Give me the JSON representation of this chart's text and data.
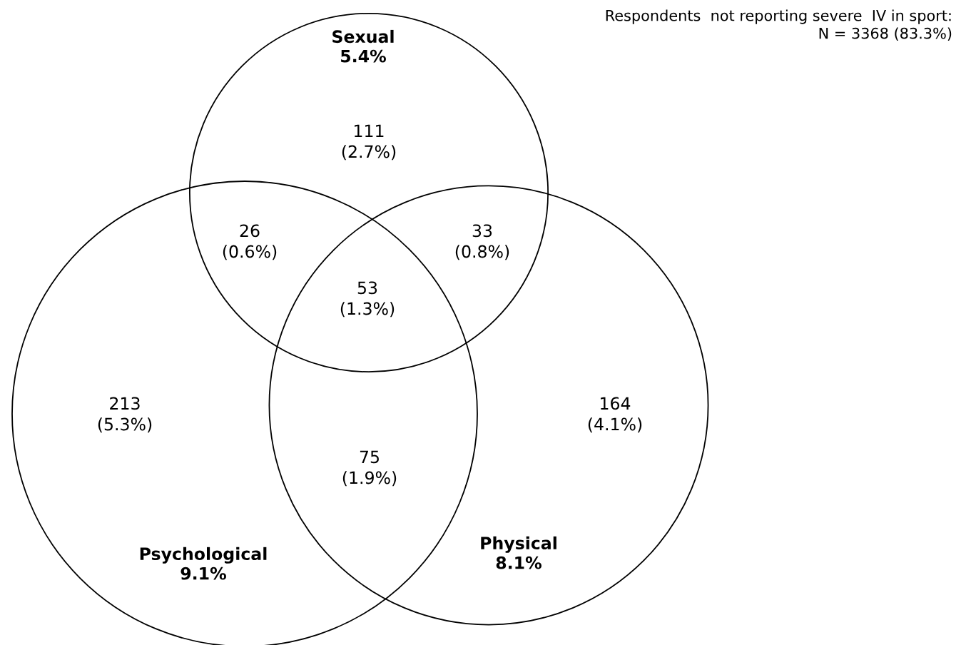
{
  "chart_data": {
    "type": "other",
    "categories": [
      "Sexual",
      "Psychological",
      "Physical"
    ],
    "values": [
      5.4,
      9.1,
      8.1
    ],
    "value_labels": [
      "5.4%",
      "9.1%",
      "8.1%"
    ],
    "annotations": [
      "111\n(2.7%)",
      "26\n(0.6%)",
      "33\n(0.8%)",
      "53\n(1.3%)",
      "213\n(5.3%)",
      "75\n(1.9%)",
      "164\n(4.1%)",
      "Respondents  not reporting severe  IV in sport:\nN = 3368 (83.3%)"
    ]
  }
}
